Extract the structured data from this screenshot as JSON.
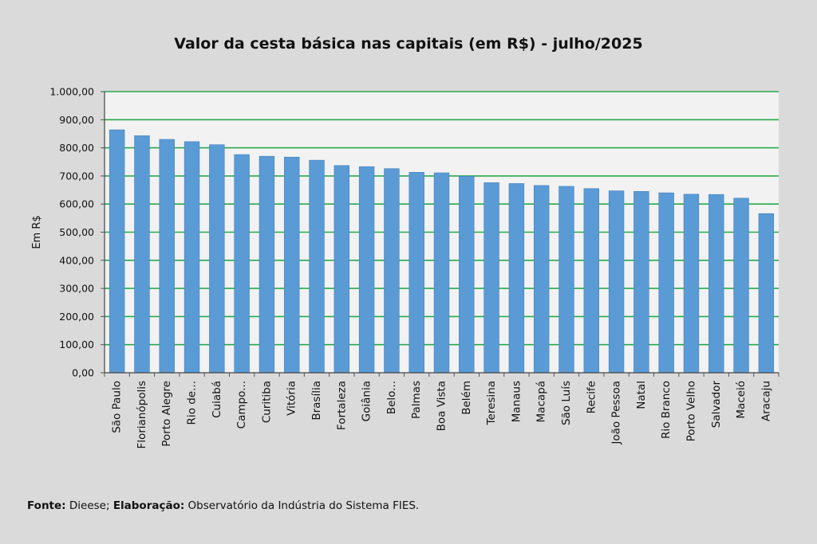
{
  "chart_data": {
    "type": "bar",
    "title": "Valor da cesta básica nas capitais (em R$) - julho/2025",
    "xlabel": "",
    "ylabel": "Em R$",
    "ylim": [
      0,
      1000
    ],
    "y_ticks": [
      "0,00",
      "100,00",
      "200,00",
      "300,00",
      "400,00",
      "500,00",
      "600,00",
      "700,00",
      "800,00",
      "900,00",
      "1.000,00"
    ],
    "grid": true,
    "categories": [
      "São Paulo",
      "Florianópolis",
      "Porto Alegre",
      "Rio de...",
      "Cuiabá",
      "Campo...",
      "Curitiba",
      "Vitória",
      "Brasília",
      "Fortaleza",
      "Goiânia",
      "Belo...",
      "Palmas",
      "Boa Vista",
      "Belém",
      "Teresina",
      "Manaus",
      "Macapá",
      "São Luís",
      "Recife",
      "João Pessoa",
      "Natal",
      "Rio Branco",
      "Porto Velho",
      "Salvador",
      "Maceió",
      "Aracaju"
    ],
    "values": [
      864,
      843,
      830,
      822,
      811,
      776,
      770,
      767,
      756,
      737,
      733,
      726,
      713,
      711,
      699,
      676,
      673,
      666,
      663,
      655,
      647,
      645,
      640,
      635,
      634,
      621,
      566
    ],
    "colors": {
      "bar": "#5b9bd5",
      "bar_edge": "#3f7fc0",
      "grid": "#2aa84a",
      "plot_bg": "#f2f2f2",
      "page_bg": "#dadada"
    }
  },
  "footer": {
    "fonte_label": "Fonte:",
    "fonte_text": " Dieese; ",
    "elaboracao_label": "Elaboração:",
    "elaboracao_text": " Observatório da Indústria do Sistema FIES."
  }
}
